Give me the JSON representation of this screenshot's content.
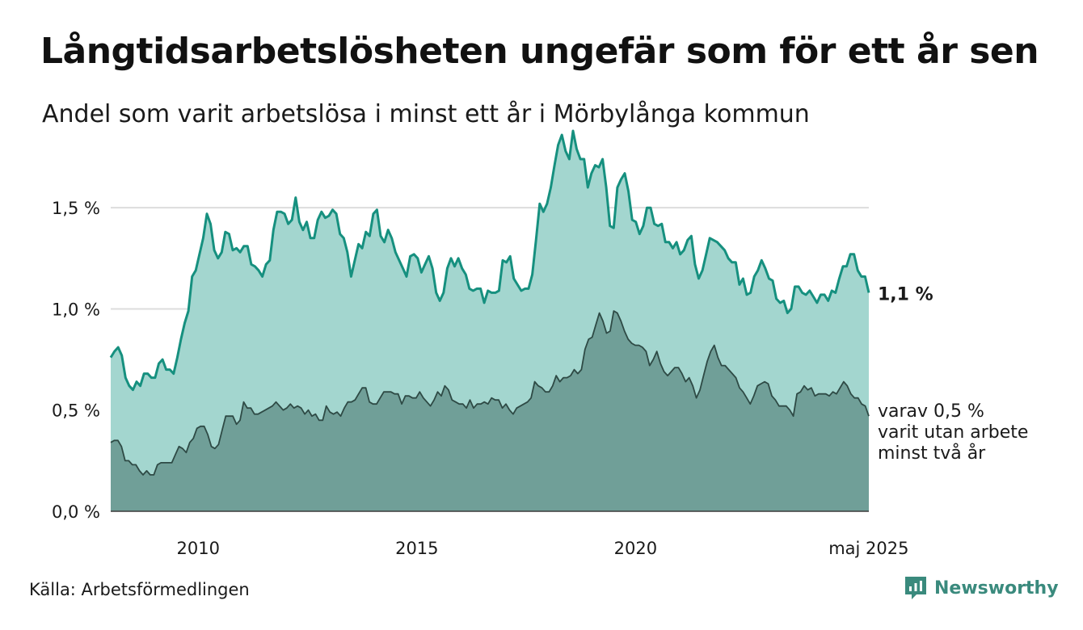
{
  "title": "Långtidsarbetslösheten ungefär som för ett år sen",
  "subtitle": "Andel som varit arbetslösa i minst ett år i Mörbylånga kommun",
  "source": "Källa: Arbetsförmedlingen",
  "brand": {
    "name": "Newsworthy",
    "icon": "newsworthy-logo-icon"
  },
  "colors": {
    "area_1yr": "#a3d6cf",
    "line_1yr": "#16907f",
    "area_2yr": "#709f98",
    "line_2yr": "#2e4a45",
    "grid": "#dddddd"
  },
  "chart_data": {
    "type": "area",
    "x_unit": "year (decimal)",
    "start_year": 2008.0,
    "step_years": 0.0833333,
    "ylim": [
      0,
      1.8
    ],
    "yticks": [
      0,
      0.5,
      1.0,
      1.5
    ],
    "ytick_labels": [
      "0,0 %",
      "0,5 %",
      "1,0 %",
      "1,5 %"
    ],
    "xticks": [
      2010,
      2015,
      2020,
      2025.33
    ],
    "xtick_labels": [
      "2010",
      "2015",
      "2020",
      "maj 2025"
    ],
    "grid": true,
    "series": [
      {
        "key": "one_year",
        "end_label": "1,1 %",
        "values": [
          0.76,
          0.79,
          0.81,
          0.77,
          0.66,
          0.62,
          0.6,
          0.64,
          0.62,
          0.68,
          0.68,
          0.66,
          0.66,
          0.73,
          0.75,
          0.7,
          0.7,
          0.68,
          0.76,
          0.85,
          0.93,
          0.99,
          1.16,
          1.19,
          1.27,
          1.35,
          1.47,
          1.42,
          1.29,
          1.25,
          1.28,
          1.38,
          1.37,
          1.29,
          1.3,
          1.28,
          1.31,
          1.31,
          1.22,
          1.21,
          1.19,
          1.16,
          1.22,
          1.24,
          1.39,
          1.48,
          1.48,
          1.47,
          1.42,
          1.44,
          1.55,
          1.43,
          1.39,
          1.43,
          1.35,
          1.35,
          1.44,
          1.48,
          1.45,
          1.46,
          1.49,
          1.47,
          1.37,
          1.35,
          1.28,
          1.16,
          1.24,
          1.32,
          1.3,
          1.38,
          1.36,
          1.47,
          1.49,
          1.36,
          1.33,
          1.39,
          1.35,
          1.28,
          1.24,
          1.2,
          1.16,
          1.26,
          1.27,
          1.25,
          1.18,
          1.22,
          1.26,
          1.2,
          1.08,
          1.04,
          1.08,
          1.2,
          1.25,
          1.21,
          1.25,
          1.2,
          1.17,
          1.1,
          1.09,
          1.1,
          1.1,
          1.03,
          1.09,
          1.08,
          1.08,
          1.09,
          1.24,
          1.23,
          1.26,
          1.15,
          1.12,
          1.09,
          1.1,
          1.1,
          1.17,
          1.34,
          1.52,
          1.48,
          1.52,
          1.6,
          1.71,
          1.81,
          1.86,
          1.78,
          1.74,
          1.88,
          1.79,
          1.74,
          1.74,
          1.6,
          1.67,
          1.71,
          1.7,
          1.74,
          1.6,
          1.41,
          1.4,
          1.6,
          1.64,
          1.67,
          1.58,
          1.44,
          1.43,
          1.37,
          1.41,
          1.5,
          1.5,
          1.42,
          1.41,
          1.42,
          1.33,
          1.33,
          1.3,
          1.33,
          1.27,
          1.29,
          1.34,
          1.36,
          1.22,
          1.15,
          1.19,
          1.27,
          1.35,
          1.34,
          1.33,
          1.31,
          1.29,
          1.25,
          1.23,
          1.23,
          1.12,
          1.15,
          1.07,
          1.08,
          1.16,
          1.19,
          1.24,
          1.2,
          1.15,
          1.14,
          1.05,
          1.03,
          1.04,
          0.98,
          1.0,
          1.11,
          1.11,
          1.08,
          1.07,
          1.09,
          1.06,
          1.03,
          1.07,
          1.07,
          1.04,
          1.09,
          1.08,
          1.15,
          1.21,
          1.21,
          1.27,
          1.27,
          1.19,
          1.16,
          1.16,
          1.08
        ]
      },
      {
        "key": "two_year",
        "end_label_lines": [
          "varav 0,5 %",
          "varit utan arbete",
          "minst två år"
        ],
        "values": [
          0.34,
          0.35,
          0.35,
          0.32,
          0.25,
          0.25,
          0.23,
          0.23,
          0.2,
          0.18,
          0.2,
          0.18,
          0.18,
          0.23,
          0.24,
          0.24,
          0.24,
          0.24,
          0.28,
          0.32,
          0.31,
          0.29,
          0.34,
          0.36,
          0.41,
          0.42,
          0.42,
          0.38,
          0.32,
          0.31,
          0.33,
          0.4,
          0.47,
          0.47,
          0.47,
          0.43,
          0.45,
          0.54,
          0.51,
          0.51,
          0.48,
          0.48,
          0.49,
          0.5,
          0.51,
          0.52,
          0.54,
          0.52,
          0.5,
          0.51,
          0.53,
          0.51,
          0.52,
          0.51,
          0.48,
          0.5,
          0.47,
          0.48,
          0.45,
          0.45,
          0.52,
          0.49,
          0.48,
          0.49,
          0.47,
          0.51,
          0.54,
          0.54,
          0.55,
          0.58,
          0.61,
          0.61,
          0.54,
          0.53,
          0.53,
          0.56,
          0.59,
          0.59,
          0.59,
          0.58,
          0.58,
          0.53,
          0.57,
          0.57,
          0.56,
          0.56,
          0.59,
          0.56,
          0.54,
          0.52,
          0.55,
          0.59,
          0.57,
          0.62,
          0.6,
          0.55,
          0.54,
          0.53,
          0.53,
          0.51,
          0.55,
          0.51,
          0.53,
          0.53,
          0.54,
          0.53,
          0.56,
          0.55,
          0.55,
          0.51,
          0.53,
          0.5,
          0.48,
          0.51,
          0.52,
          0.53,
          0.54,
          0.56,
          0.64,
          0.62,
          0.61,
          0.59,
          0.59,
          0.62,
          0.67,
          0.64,
          0.66,
          0.66,
          0.67,
          0.7,
          0.68,
          0.7,
          0.8,
          0.85,
          0.86,
          0.92,
          0.98,
          0.94,
          0.88,
          0.89,
          0.99,
          0.98,
          0.94,
          0.89,
          0.85,
          0.83,
          0.82,
          0.82,
          0.81,
          0.79,
          0.72,
          0.75,
          0.79,
          0.73,
          0.69,
          0.67,
          0.69,
          0.71,
          0.71,
          0.68,
          0.64,
          0.66,
          0.62,
          0.56,
          0.6,
          0.67,
          0.74,
          0.79,
          0.82,
          0.76,
          0.72,
          0.72,
          0.7,
          0.68,
          0.66,
          0.61,
          0.59,
          0.56,
          0.53,
          0.57,
          0.62,
          0.63,
          0.64,
          0.63,
          0.57,
          0.55,
          0.52,
          0.52,
          0.52,
          0.5,
          0.47,
          0.58,
          0.59,
          0.62,
          0.6,
          0.61,
          0.57,
          0.58,
          0.58,
          0.58,
          0.57,
          0.59,
          0.58,
          0.61,
          0.64,
          0.62,
          0.58,
          0.56,
          0.56,
          0.53,
          0.52,
          0.47
        ]
      }
    ]
  }
}
